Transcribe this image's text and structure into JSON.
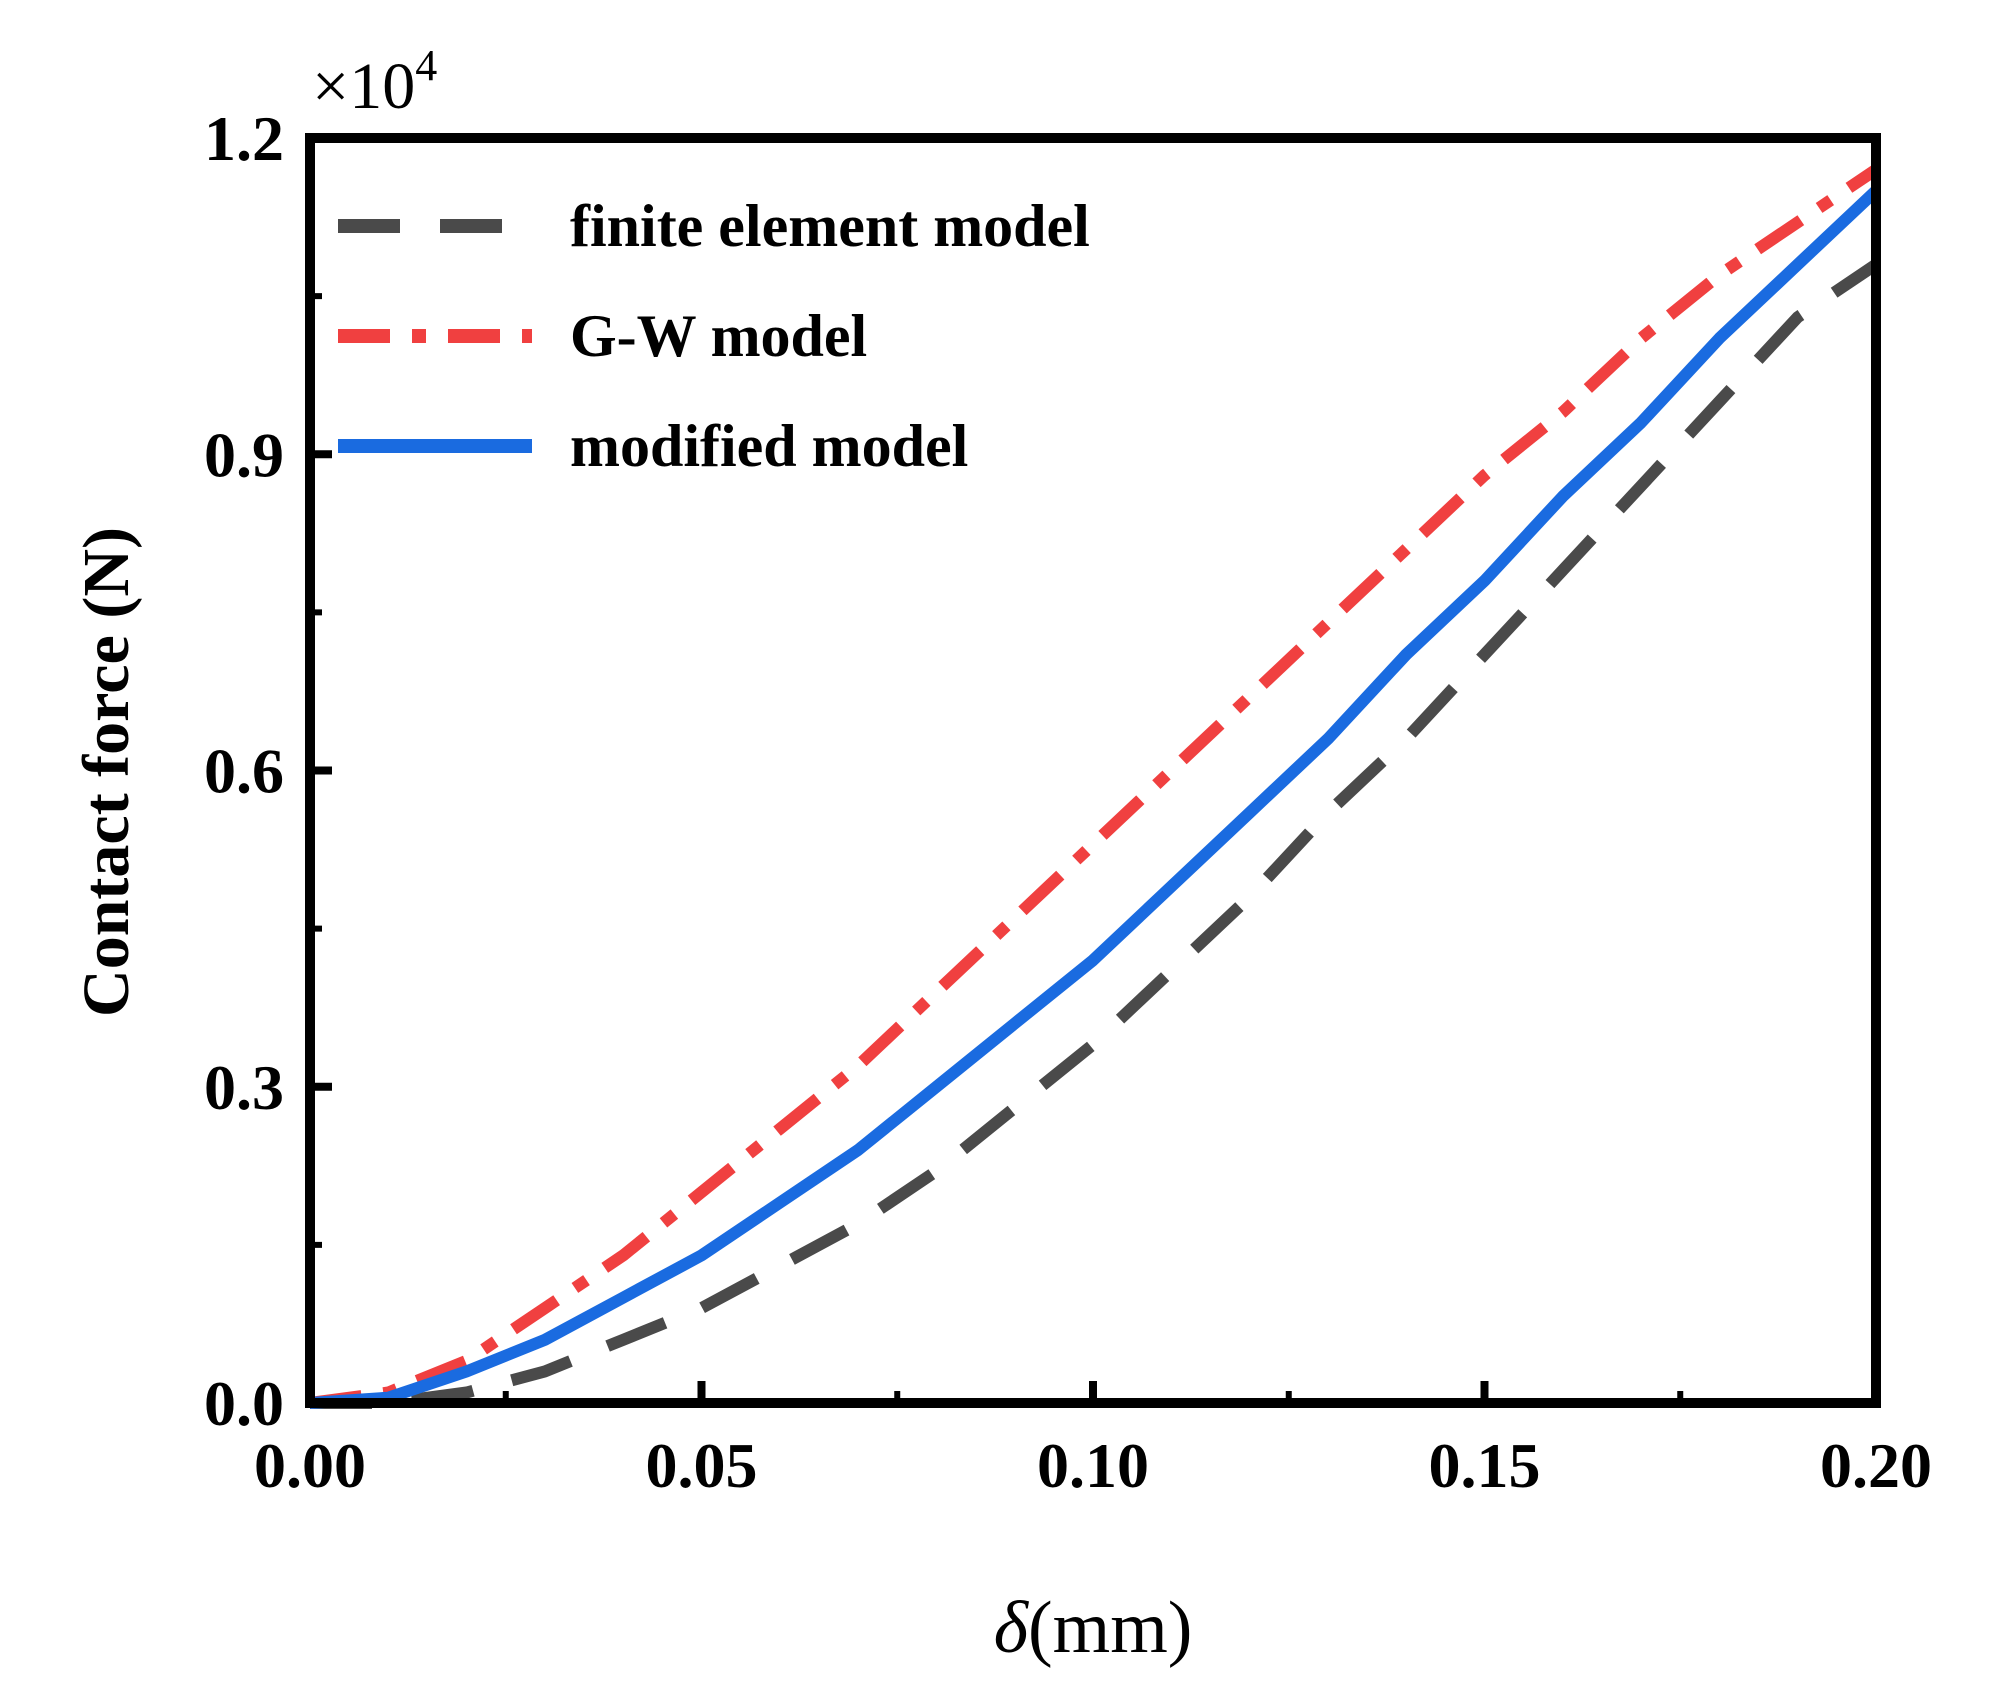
{
  "chart_data": {
    "type": "line",
    "xlabel_symbol": "δ",
    "xlabel_unit": "(mm)",
    "ylabel": "Contact force (N)",
    "y_multiplier_base": "×10",
    "y_multiplier_exp": "4",
    "xlim": [
      0,
      0.2
    ],
    "ylim": [
      0,
      1.2
    ],
    "x_ticks": [
      0.0,
      0.05,
      0.1,
      0.15,
      0.2
    ],
    "x_tick_labels": [
      "0.00",
      "0.05",
      "0.10",
      "0.15",
      "0.20"
    ],
    "y_ticks": [
      0.0,
      0.3,
      0.6,
      0.9,
      1.2
    ],
    "y_tick_labels": [
      "0.0",
      "0.3",
      "0.6",
      "0.9",
      "1.2"
    ],
    "legend_position": "top-left",
    "x": [
      0.0,
      0.01,
      0.02,
      0.03,
      0.04,
      0.05,
      0.06,
      0.07,
      0.08,
      0.09,
      0.1,
      0.11,
      0.12,
      0.13,
      0.14,
      0.15,
      0.16,
      0.17,
      0.18,
      0.19,
      0.2
    ],
    "series": [
      {
        "name": "finite element model",
        "color": "#4a4a4a",
        "style": "dashed",
        "values": [
          0.0,
          0.0,
          0.01,
          0.03,
          0.06,
          0.09,
          0.13,
          0.17,
          0.22,
          0.28,
          0.34,
          0.41,
          0.48,
          0.56,
          0.63,
          0.71,
          0.79,
          0.87,
          0.95,
          1.03,
          1.08
        ]
      },
      {
        "name": "G-W model",
        "color": "#f04040",
        "style": "dashdot",
        "values": [
          0.0,
          0.01,
          0.04,
          0.09,
          0.14,
          0.2,
          0.26,
          0.32,
          0.39,
          0.46,
          0.53,
          0.6,
          0.67,
          0.74,
          0.81,
          0.88,
          0.94,
          1.01,
          1.07,
          1.12,
          1.17
        ]
      },
      {
        "name": "modified model",
        "color": "#1a6be0",
        "style": "solid",
        "values": [
          0.0,
          0.005,
          0.03,
          0.06,
          0.1,
          0.14,
          0.19,
          0.24,
          0.3,
          0.36,
          0.42,
          0.49,
          0.56,
          0.63,
          0.71,
          0.78,
          0.86,
          0.93,
          1.01,
          1.08,
          1.15
        ]
      }
    ]
  }
}
